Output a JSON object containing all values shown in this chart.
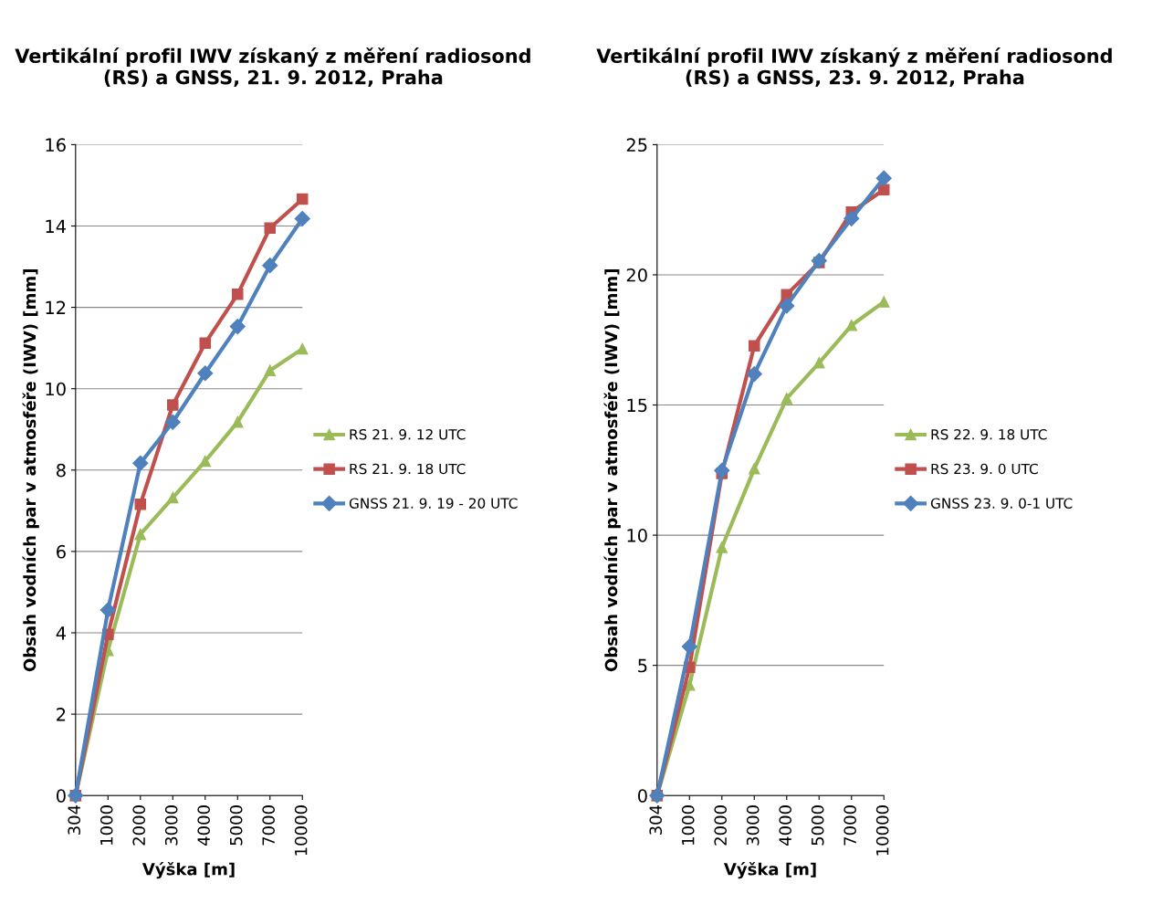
{
  "chart_data": [
    {
      "type": "line",
      "title": "Vertikální profil IWV získaný z měření radiosond (RS) a GNSS, 21. 9. 2012, Praha",
      "xlabel": "Výška [m]",
      "ylabel": "Obsah vodních par v atmosféře (IWV) [mm]",
      "categories": [
        "304",
        "1000",
        "2000",
        "3000",
        "4000",
        "5000",
        "7000",
        "10000"
      ],
      "ylim": [
        0,
        16
      ],
      "yticks": [
        0,
        2,
        4,
        6,
        8,
        10,
        12,
        14,
        16
      ],
      "grid": "y",
      "legend": "right",
      "series": [
        {
          "name": "RS 21. 9. 12 UTC",
          "color": "#9bbb59",
          "marker": "triangle",
          "values": [
            0,
            3.57,
            6.42,
            7.32,
            8.22,
            9.18,
            10.45,
            10.98
          ]
        },
        {
          "name": "RS 21. 9. 18 UTC",
          "color": "#c0504d",
          "marker": "square",
          "values": [
            0,
            3.96,
            7.16,
            9.6,
            11.12,
            12.32,
            13.95,
            14.66
          ]
        },
        {
          "name": "GNSS 21. 9. 19 - 20 UTC",
          "color": "#4f81bd",
          "marker": "diamond",
          "values": [
            0,
            4.56,
            8.17,
            9.18,
            10.38,
            11.53,
            13.03,
            14.18
          ]
        }
      ]
    },
    {
      "type": "line",
      "title": "Vertikální profil IWV získaný z měření radiosond (RS) a GNSS, 23. 9. 2012, Praha",
      "xlabel": "Výška [m]",
      "ylabel": "Obsah vodních par v atmosféře (IWV) [mm]",
      "categories": [
        "304",
        "1000",
        "2000",
        "3000",
        "4000",
        "5000",
        "7000",
        "10000"
      ],
      "ylim": [
        0,
        25
      ],
      "yticks": [
        0,
        5,
        10,
        15,
        20,
        25
      ],
      "grid": "y",
      "legend": "right",
      "series": [
        {
          "name": "RS 22. 9. 18 UTC",
          "color": "#9bbb59",
          "marker": "triangle",
          "values": [
            0,
            4.24,
            9.53,
            12.55,
            15.25,
            16.62,
            18.06,
            18.96
          ]
        },
        {
          "name": "RS 23. 9. 0 UTC",
          "color": "#c0504d",
          "marker": "square",
          "values": [
            0,
            4.93,
            12.37,
            17.27,
            19.24,
            20.47,
            22.41,
            23.27
          ]
        },
        {
          "name": "GNSS 23. 9. 0-1 UTC",
          "color": "#4f81bd",
          "marker": "diamond",
          "values": [
            0,
            5.72,
            12.48,
            16.19,
            18.81,
            20.54,
            22.16,
            23.71
          ]
        }
      ]
    }
  ]
}
